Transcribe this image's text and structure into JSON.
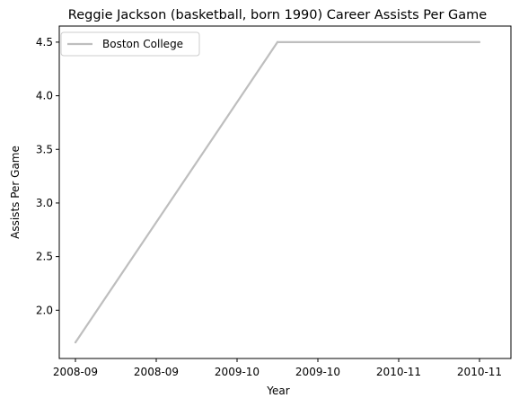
{
  "chart_data": {
    "type": "line",
    "title": "Reggie Jackson (basketball, born 1990) Career Assists Per Game",
    "xlabel": "Year",
    "ylabel": "Assists Per Game",
    "x": [
      "2008-09",
      "2009-10",
      "2010-11"
    ],
    "x_tick_labels": [
      "2008-09",
      "2008-09",
      "2009-10",
      "2009-10",
      "2010-11",
      "2010-11"
    ],
    "y_tick_labels": [
      "2.0",
      "2.5",
      "3.0",
      "3.5",
      "4.0",
      "4.5"
    ],
    "ylim": [
      1.55,
      4.65
    ],
    "series": [
      {
        "name": "Boston College",
        "values": [
          1.7,
          4.5,
          4.5
        ],
        "color": "#bebebe"
      }
    ],
    "legend": {
      "position": "top-left"
    },
    "grid": false
  }
}
